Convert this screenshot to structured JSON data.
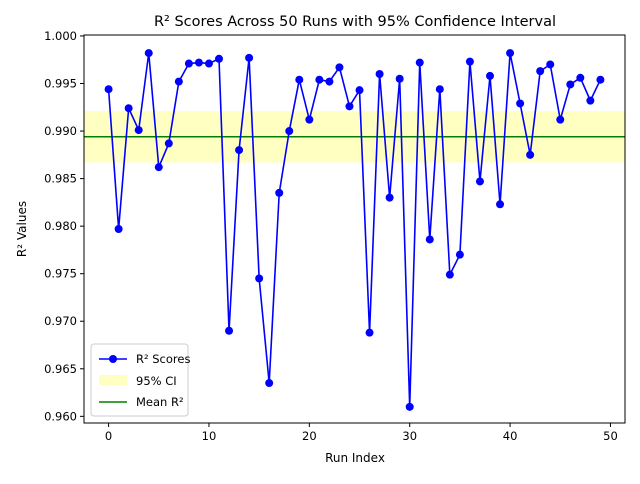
{
  "chart_data": {
    "type": "line",
    "title": "R² Scores Across 50 Runs with 95% Confidence Interval",
    "xlabel": "Run Index",
    "ylabel": "R² Values",
    "xlim": [
      -2.45,
      51.45
    ],
    "ylim": [
      0.9593,
      1.0001
    ],
    "x_ticks": [
      0,
      10,
      20,
      30,
      40,
      50
    ],
    "y_ticks": [
      0.96,
      0.965,
      0.97,
      0.975,
      0.98,
      0.985,
      0.99,
      0.995,
      1.0
    ],
    "y_tick_labels": [
      "0.960",
      "0.965",
      "0.970",
      "0.975",
      "0.980",
      "0.985",
      "0.990",
      "0.995",
      "1.000"
    ],
    "grid": false,
    "legend": "lower-left",
    "series": [
      {
        "name": "R² Scores",
        "color": "#0000ff",
        "marker": "circle",
        "x": [
          0,
          1,
          2,
          3,
          4,
          5,
          6,
          7,
          8,
          9,
          10,
          11,
          12,
          13,
          14,
          15,
          16,
          17,
          18,
          19,
          20,
          21,
          22,
          23,
          24,
          25,
          26,
          27,
          28,
          29,
          30,
          31,
          32,
          33,
          34,
          35,
          36,
          37,
          38,
          39,
          40,
          41,
          42,
          43,
          44,
          45,
          46,
          47,
          48,
          49
        ],
        "values": [
          0.9944,
          0.9797,
          0.9924,
          0.9901,
          0.9982,
          0.9862,
          0.9887,
          0.9952,
          0.9971,
          0.9972,
          0.9971,
          0.9976,
          0.969,
          0.988,
          0.9977,
          0.9745,
          0.9635,
          0.9835,
          0.99,
          0.9954,
          0.9912,
          0.9954,
          0.9952,
          0.9967,
          0.9926,
          0.9943,
          0.9688,
          0.996,
          0.983,
          0.9955,
          0.961,
          0.9972,
          0.9786,
          0.9944,
          0.9749,
          0.977,
          0.9973,
          0.9847,
          0.9958,
          0.9823,
          0.9982,
          0.9929,
          0.9875,
          0.9963,
          0.997,
          0.9912,
          0.9949,
          0.9956,
          0.9932,
          0.9954
        ]
      }
    ],
    "confidence_band": {
      "name": "95% CI",
      "color": "#ffff99",
      "lower": 0.9867,
      "upper": 0.9921
    },
    "mean_line": {
      "name": "Mean R²",
      "color": "#008000",
      "value": 0.9894
    }
  }
}
